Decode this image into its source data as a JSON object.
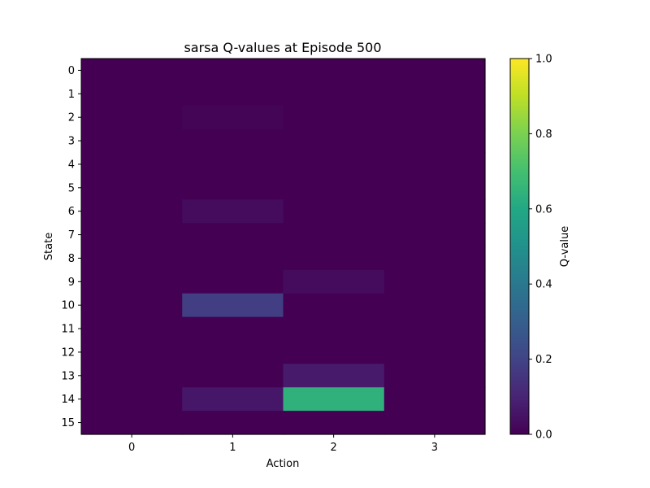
{
  "chart_data": {
    "type": "heatmap",
    "title": "sarsa Q-values at Episode 500",
    "xlabel": "Action",
    "ylabel": "State",
    "colorbar_label": "Q-value",
    "colormap": "viridis",
    "color_range": [
      0.0,
      1.0
    ],
    "colorbar_ticks": [
      "0.0",
      "0.2",
      "0.4",
      "0.6",
      "0.8",
      "1.0"
    ],
    "x_categories": [
      "0",
      "1",
      "2",
      "3"
    ],
    "y_categories": [
      "0",
      "1",
      "2",
      "3",
      "4",
      "5",
      "6",
      "7",
      "8",
      "9",
      "10",
      "11",
      "12",
      "13",
      "14",
      "15"
    ],
    "values": [
      [
        0.0,
        0.0,
        0.0,
        0.0
      ],
      [
        0.0,
        0.0,
        0.0,
        0.0
      ],
      [
        0.0,
        0.01,
        0.0,
        0.0
      ],
      [
        0.0,
        0.0,
        0.0,
        0.0
      ],
      [
        0.0,
        0.0,
        0.0,
        0.0
      ],
      [
        0.0,
        0.0,
        0.0,
        0.0
      ],
      [
        0.0,
        0.03,
        0.0,
        0.0
      ],
      [
        0.0,
        0.0,
        0.0,
        0.0
      ],
      [
        0.0,
        0.0,
        0.0,
        0.0
      ],
      [
        0.0,
        0.0,
        0.03,
        0.0
      ],
      [
        0.0,
        0.18,
        0.0,
        0.0
      ],
      [
        0.0,
        0.0,
        0.0,
        0.0
      ],
      [
        0.0,
        0.0,
        0.0,
        0.0
      ],
      [
        0.0,
        0.0,
        0.07,
        0.0
      ],
      [
        0.0,
        0.06,
        0.64,
        0.0
      ],
      [
        0.0,
        0.0,
        0.0,
        0.0
      ]
    ]
  }
}
